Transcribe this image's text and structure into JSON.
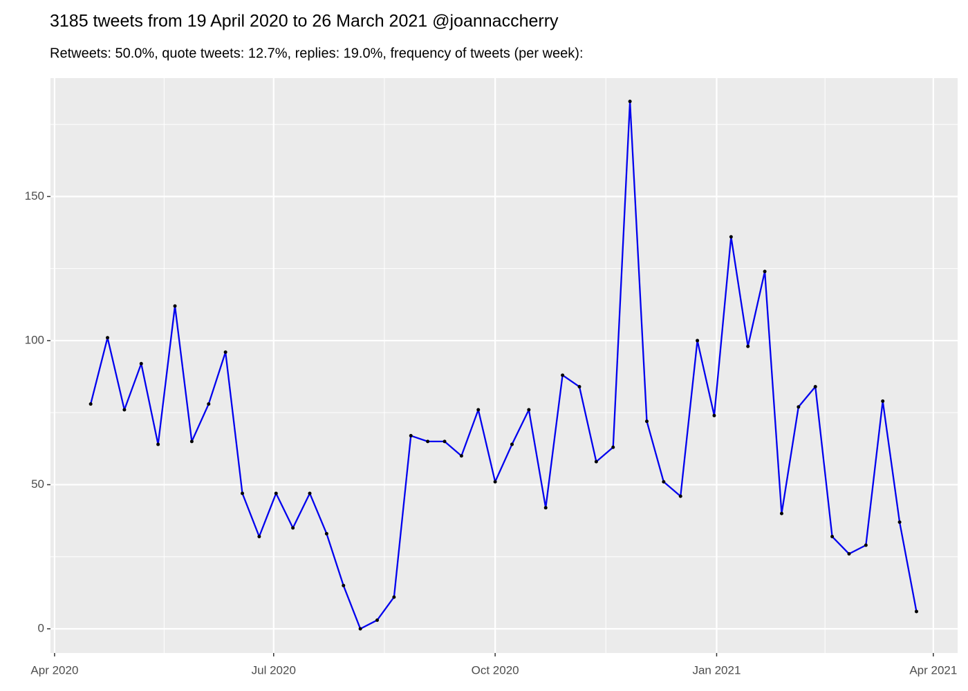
{
  "chart_data": {
    "type": "line",
    "title": "3185 tweets from 19 April 2020 to 26 March 2021 @joannaccherry",
    "subtitle": "Retweets: 50.0%, quote tweets: 12.7%, replies: 19.0%, frequency of tweets (per week):",
    "x": [
      15,
      22,
      29,
      36,
      43,
      50,
      57,
      64,
      71,
      78,
      85,
      92,
      99,
      106,
      113,
      120,
      127,
      134,
      141,
      148,
      155,
      162,
      169,
      176,
      183,
      190,
      197,
      204,
      211,
      218,
      225,
      232,
      239,
      246,
      253,
      260,
      267,
      274,
      281,
      288,
      295,
      302,
      309,
      316,
      323,
      330,
      337,
      344,
      351,
      358
    ],
    "values": [
      78,
      101,
      76,
      92,
      64,
      112,
      65,
      78,
      96,
      47,
      32,
      47,
      35,
      47,
      33,
      15,
      0,
      3,
      11,
      67,
      65,
      65,
      60,
      76,
      51,
      64,
      76,
      42,
      88,
      84,
      58,
      63,
      183,
      72,
      51,
      46,
      100,
      74,
      136,
      98,
      124,
      40,
      77,
      84,
      32,
      26,
      29,
      79,
      37,
      6
    ],
    "color": "#0000ee",
    "marker_color": "#000000",
    "xlim": [
      -1.7,
      375.1
    ],
    "xticks": [
      {
        "value": 0,
        "label": "Apr 2020"
      },
      {
        "value": 91,
        "label": "Jul 2020"
      },
      {
        "value": 183,
        "label": "Oct 2020"
      },
      {
        "value": 275,
        "label": "Jan 2021"
      },
      {
        "value": 365,
        "label": "Apr 2021"
      }
    ],
    "ylim": [
      -8.4,
      191.1
    ],
    "yticks": [
      0,
      50,
      100,
      150
    ],
    "grid": true
  }
}
